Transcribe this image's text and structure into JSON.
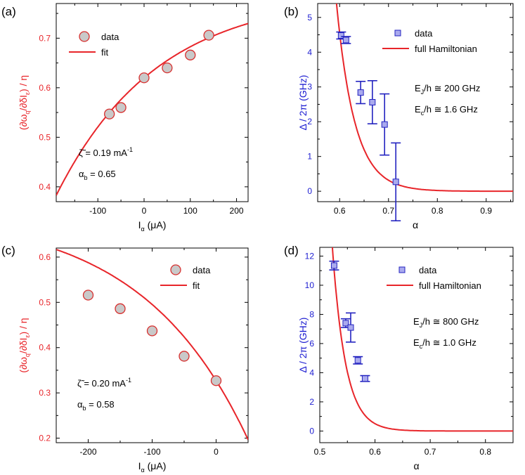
{
  "chart_data": [
    {
      "type": "scatter",
      "panel_label": "(a)",
      "xlim": [
        -190,
        225
      ],
      "ylim": [
        0.37,
        0.77
      ],
      "xticks": [
        -100,
        0,
        100,
        200
      ],
      "yticks": [
        0.4,
        0.5,
        0.6,
        0.7
      ],
      "xtick_labels": [
        "-100",
        "0",
        "100",
        "200"
      ],
      "ytick_labels": [
        "0.4",
        "0.5",
        "0.6",
        "0.7"
      ],
      "xlabel": {
        "main": "I",
        "sub": "α",
        "tail": " (μA)"
      },
      "ylabel": {
        "p1": "(∂ω",
        "s1": "q",
        "p2": "/∂δI",
        "s2": "ε",
        "p3": ") / η"
      },
      "ylabel_color": "#e8252a",
      "series": [
        {
          "name": "data",
          "kind": "points",
          "x": [
            -75,
            -50,
            0,
            50,
            100,
            140
          ],
          "y": [
            0.547,
            0.56,
            0.62,
            0.64,
            0.666,
            0.706
          ]
        },
        {
          "name": "fit",
          "kind": "curve",
          "zeta": 0.19,
          "alpha_b": 0.65
        }
      ],
      "legend": [
        "data",
        "fit"
      ],
      "annotations": [
        {
          "main": "ζ̃ = 0.19 mA",
          "sup": "-1"
        },
        {
          "main": "α",
          "sub": "b",
          "tail": " = 0.65"
        }
      ]
    },
    {
      "type": "scatter",
      "panel_label": "(b)",
      "xlim": [
        0.555,
        0.955
      ],
      "ylim": [
        -0.3,
        5.4
      ],
      "xticks": [
        0.6,
        0.7,
        0.8,
        0.9
      ],
      "yticks": [
        0,
        1,
        2,
        3,
        4,
        5
      ],
      "xtick_labels": [
        "0.6",
        "0.7",
        "0.8",
        "0.9"
      ],
      "ytick_labels": [
        "0",
        "1",
        "2",
        "3",
        "4",
        "5"
      ],
      "xlabel": {
        "main": "α"
      },
      "ylabel": {
        "p1": "Δ / 2π  (GHz)"
      },
      "ylabel_color": "#1c1cd1",
      "series": [
        {
          "name": "data",
          "kind": "points",
          "x": [
            0.603,
            0.613,
            0.643,
            0.667,
            0.692,
            0.715
          ],
          "y": [
            4.48,
            4.35,
            2.84,
            2.56,
            1.92,
            0.27
          ],
          "err": [
            0.1,
            0.1,
            0.32,
            0.62,
            0.88,
            1.12
          ]
        },
        {
          "name": "full Hamiltonian",
          "kind": "curve",
          "a": 0.6,
          "b": 4.55,
          "w": 0.03,
          "c": 1.25
        }
      ],
      "legend": [
        "data",
        "full Hamiltonian"
      ],
      "annotations": [
        {
          "main": "E",
          "sub": "J",
          "tail": "/h ≅ 200 GHz"
        },
        {
          "main": "E",
          "sub": "c",
          "tail": "/h ≅ 1.6 GHz"
        }
      ]
    },
    {
      "type": "scatter",
      "panel_label": "(c)",
      "xlim": [
        -250,
        50
      ],
      "ylim": [
        0.19,
        0.62
      ],
      "xticks": [
        -200,
        -100,
        0
      ],
      "yticks": [
        0.2,
        0.3,
        0.4,
        0.5,
        0.6
      ],
      "xtick_labels": [
        "-200",
        "-100",
        "0"
      ],
      "ytick_labels": [
        "0.2",
        "0.3",
        "0.4",
        "0.5",
        "0.6"
      ],
      "xlabel": {
        "main": "I",
        "sub": "α",
        "tail": " (μA)"
      },
      "ylabel": {
        "p1": "(∂ω",
        "s1": "q",
        "p2": "/∂δI",
        "s2": "ε",
        "p3": ") / η"
      },
      "ylabel_color": "#e8252a",
      "series": [
        {
          "name": "data",
          "kind": "points",
          "x": [
            -200,
            -150,
            -100,
            -50,
            0
          ],
          "y": [
            0.516,
            0.486,
            0.437,
            0.381,
            0.327
          ]
        },
        {
          "name": "fit",
          "kind": "curve",
          "zeta": 0.2,
          "alpha_b": 0.58
        }
      ],
      "legend": [
        "data",
        "fit"
      ],
      "annotations": [
        {
          "main": "ζ̃ = 0.20 mA",
          "sup": "-1"
        },
        {
          "main": "α",
          "sub": "b",
          "tail": " = 0.58"
        }
      ]
    },
    {
      "type": "scatter",
      "panel_label": "(d)",
      "xlim": [
        0.5,
        0.85
      ],
      "ylim": [
        -0.8,
        12.6
      ],
      "xticks": [
        0.5,
        0.6,
        0.7,
        0.8
      ],
      "yticks": [
        0,
        2,
        4,
        6,
        8,
        10,
        12
      ],
      "xtick_labels": [
        "0.5",
        "0.6",
        "0.7",
        "0.8"
      ],
      "ytick_labels": [
        "0",
        "2",
        "4",
        "6",
        "8",
        "10",
        "12"
      ],
      "xlabel": {
        "main": "α"
      },
      "ylabel": {
        "p1": "Δ / 2π  (GHz)"
      },
      "ylabel_color": "#1c1cd1",
      "series": [
        {
          "name": "data",
          "kind": "points",
          "x": [
            0.526,
            0.547,
            0.556,
            0.569,
            0.582
          ],
          "y": [
            11.35,
            7.4,
            7.1,
            4.85,
            3.6
          ],
          "err": [
            0.3,
            0.3,
            1.0,
            0.25,
            0.2
          ]
        },
        {
          "name": "full Hamiltonian",
          "kind": "curve",
          "a": 0.525,
          "b": 11.5,
          "w": 0.02,
          "c": 1.2
        }
      ],
      "legend": [
        "data",
        "full Hamiltonian"
      ],
      "annotations": [
        {
          "main": "E",
          "sub": "J",
          "tail": "/h ≅ 800 GHz"
        },
        {
          "main": "E",
          "sub": "c",
          "tail": "/h ≅ 1.0 GHz"
        }
      ]
    }
  ],
  "colors": {
    "red": "#e8252a",
    "blue": "#1c1cd1",
    "marker_fill_circle": "#c9c9c9",
    "marker_edge_circle": "#d8302f",
    "marker_fill_square": "#aaaaee",
    "marker_edge_square": "#2323c0"
  }
}
